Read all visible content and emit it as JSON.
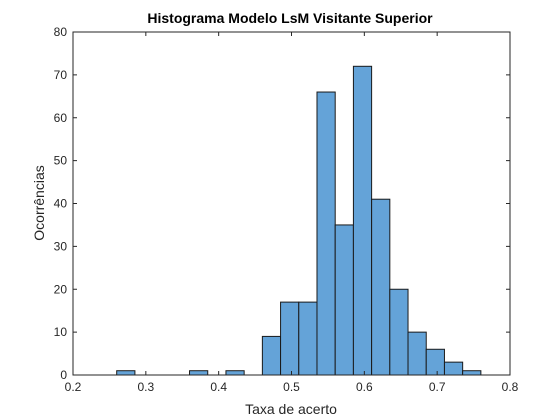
{
  "chart_data": {
    "type": "bar",
    "title": "Histograma Modelo LsM Visitante Superior",
    "xlabel": "Taxa de acerto",
    "ylabel": "Ocorrências",
    "xlim": [
      0.2,
      0.8
    ],
    "ylim": [
      0,
      80
    ],
    "xticks": [
      "0.2",
      "0.3",
      "0.4",
      "0.5",
      "0.6",
      "0.7",
      "0.8"
    ],
    "yticks": [
      "0",
      "10",
      "20",
      "30",
      "40",
      "50",
      "60",
      "70",
      "80"
    ],
    "bin_width": 0.025,
    "bins": [
      {
        "x0": 0.26,
        "value": 1
      },
      {
        "x0": 0.36,
        "value": 1
      },
      {
        "x0": 0.41,
        "value": 1
      },
      {
        "x0": 0.46,
        "value": 9
      },
      {
        "x0": 0.485,
        "value": 17
      },
      {
        "x0": 0.51,
        "value": 17
      },
      {
        "x0": 0.535,
        "value": 66
      },
      {
        "x0": 0.56,
        "value": 35
      },
      {
        "x0": 0.585,
        "value": 72
      },
      {
        "x0": 0.61,
        "value": 41
      },
      {
        "x0": 0.635,
        "value": 20
      },
      {
        "x0": 0.66,
        "value": 10
      },
      {
        "x0": 0.685,
        "value": 6
      },
      {
        "x0": 0.71,
        "value": 3
      },
      {
        "x0": 0.735,
        "value": 1
      }
    ],
    "bar_color": "#64a3d8",
    "edge_color": "#1a1a1a",
    "grid": false,
    "box": true
  }
}
